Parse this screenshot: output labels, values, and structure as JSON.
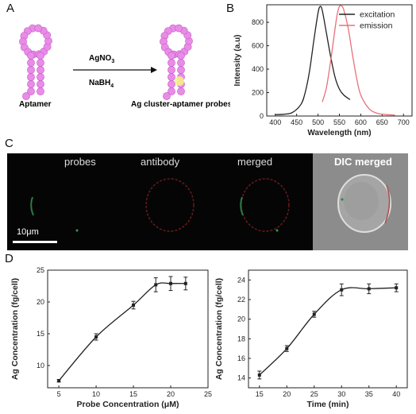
{
  "panels": {
    "A": "A",
    "B": "B",
    "C": "C",
    "D": "D"
  },
  "panelA": {
    "aptamer_label": "Aptamer",
    "reagent1": "AgNO",
    "reagent1_sub": "3",
    "reagent2": "NaBH",
    "reagent2_sub": "4",
    "product_label": "Ag cluster-aptamer probes",
    "colors": {
      "bead": "#e98ce8",
      "bead_edge": "#c55ec5",
      "cluster": "#f5ef8a"
    }
  },
  "panelC": {
    "labels": [
      "probes",
      "antibody",
      "merged",
      "DIC merged"
    ],
    "scale_bar": "10μm"
  },
  "chart_data": [
    {
      "type": "line",
      "xlabel": "Wavelength (nm)",
      "ylabel": "Intensity (a.u)",
      "xlim": [
        380,
        720
      ],
      "ylim": [
        0,
        950
      ],
      "xticks": [
        "400",
        "450",
        "500",
        "550",
        "600",
        "650",
        "700"
      ],
      "yticks": [
        "0",
        "200",
        "400",
        "600",
        "800"
      ],
      "legend_position": "top-right",
      "series": [
        {
          "name": "excitation",
          "color": "#222222",
          "x": [
            400,
            420,
            440,
            460,
            470,
            480,
            490,
            500,
            505,
            510,
            520,
            530,
            540,
            550,
            560,
            575
          ],
          "y": [
            12,
            15,
            30,
            100,
            200,
            380,
            640,
            880,
            935,
            900,
            700,
            500,
            330,
            230,
            180,
            140
          ]
        },
        {
          "name": "emission",
          "color": "#e8707a",
          "x": [
            510,
            520,
            530,
            540,
            545,
            550,
            555,
            560,
            570,
            580,
            590,
            600,
            620,
            640,
            660,
            680
          ],
          "y": [
            120,
            250,
            480,
            750,
            870,
            935,
            940,
            910,
            760,
            540,
            330,
            180,
            60,
            22,
            12,
            8
          ]
        }
      ]
    },
    {
      "type": "line",
      "xlabel": "Probe Concentration (μM)",
      "ylabel": "Ag Concentration (fg/cell)",
      "xlim": [
        3.5,
        25
      ],
      "ylim": [
        6.5,
        25
      ],
      "xticks": [
        "5",
        "10",
        "15",
        "20",
        "25"
      ],
      "yticks": [
        "10",
        "15",
        "20",
        "25"
      ],
      "series": [
        {
          "x": [
            5,
            10,
            15,
            18,
            20,
            22
          ],
          "y": [
            7.6,
            14.5,
            19.5,
            22.7,
            22.9,
            22.9
          ],
          "err": [
            0.2,
            0.5,
            0.6,
            1.1,
            1.1,
            1.0
          ]
        }
      ]
    },
    {
      "type": "line",
      "xlabel": "Time (min)",
      "ylabel": "Ag Concentration (fg/cell)",
      "xlim": [
        13,
        42
      ],
      "ylim": [
        13,
        25
      ],
      "xticks": [
        "15",
        "20",
        "25",
        "30",
        "35",
        "40"
      ],
      "yticks": [
        "14",
        "16",
        "18",
        "20",
        "22",
        "24"
      ],
      "series": [
        {
          "x": [
            15,
            20,
            25,
            30,
            35,
            40
          ],
          "y": [
            14.3,
            17.0,
            20.5,
            23.0,
            23.1,
            23.2
          ],
          "err": [
            0.4,
            0.3,
            0.3,
            0.6,
            0.5,
            0.4
          ]
        }
      ]
    }
  ]
}
